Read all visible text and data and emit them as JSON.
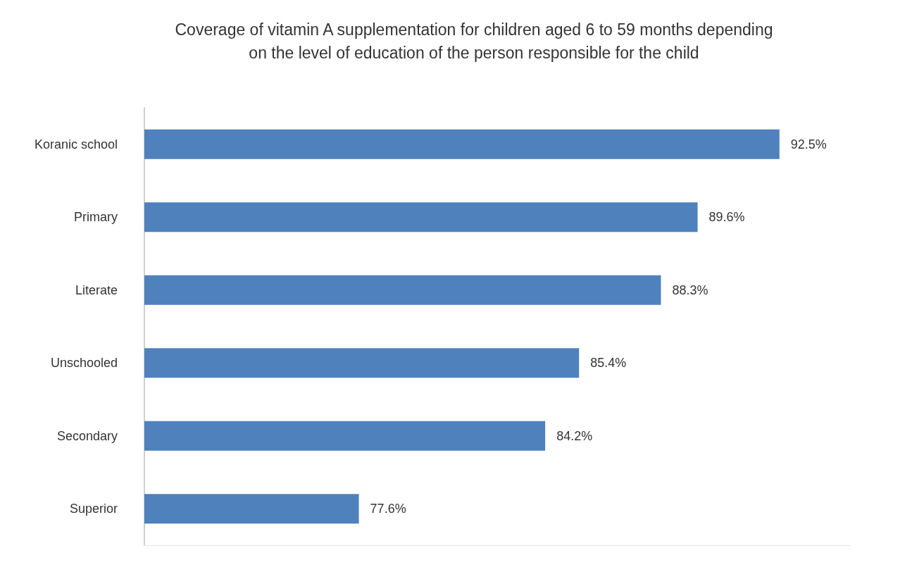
{
  "chart_data": {
    "type": "bar",
    "orientation": "horizontal",
    "title": "Coverage of vitamin A supplementation for children aged 6 to 59 months depending\non the level of education of the person responsible for the child",
    "categories": [
      "Koranic school",
      "Primary",
      "Literate",
      "Unschooled",
      "Secondary",
      "Superior"
    ],
    "values": [
      92.5,
      89.6,
      88.3,
      85.4,
      84.2,
      77.6
    ],
    "value_labels": [
      "92.5%",
      "89.6%",
      "88.3%",
      "85.4%",
      "84.2%",
      "77.6%"
    ],
    "color": "#4f81bd",
    "xlim": [
      70,
      95
    ],
    "tick_labels": "y",
    "grid": false
  }
}
